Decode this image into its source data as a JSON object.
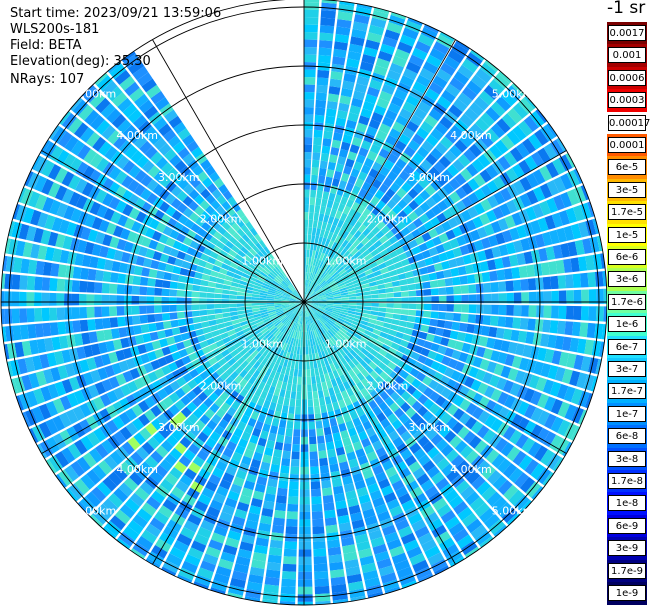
{
  "header": {
    "start_time": "Start time: 2023/09/21 13:59:06",
    "instrument": "WLS200s-181",
    "field": "Field: BETA",
    "elevation": "Elevation(deg): 35.30",
    "nrays": "NRays: 107"
  },
  "colorbar": {
    "unit_label": "-1 sr",
    "ticks": [
      "0.0017",
      "0.001",
      "0.0006",
      "0.0003",
      "0.00017",
      "0.0001",
      "6e-5",
      "3e-5",
      "1.7e-5",
      "1e-5",
      "6e-6",
      "3e-6",
      "1.7e-6",
      "1e-6",
      "6e-7",
      "3e-7",
      "1.7e-7",
      "1e-7",
      "6e-8",
      "3e-8",
      "1.7e-8",
      "1e-8",
      "6e-9",
      "3e-9",
      "1.7e-9",
      "1e-9"
    ],
    "colors": [
      "#7a0000",
      "#a30000",
      "#cc0000",
      "#f00000",
      "#ffffff",
      "#ff5a00",
      "#ff8c00",
      "#ffb800",
      "#ffe000",
      "#ffff00",
      "#d8ff20",
      "#aaff50",
      "#70ffa0",
      "#40ffd0",
      "#20e0ff",
      "#10c8ff",
      "#00b0ff",
      "#0090ff",
      "#0070ff",
      "#0050ff",
      "#0030ff",
      "#0010ff",
      "#0000e0",
      "#0000b0",
      "#000080",
      "#000060"
    ]
  },
  "plot": {
    "range_rings": [
      "1.00km",
      "2.00km",
      "3.00km",
      "4.00km",
      "5.00km"
    ],
    "blank_sector_deg": [
      325,
      360
    ]
  }
}
